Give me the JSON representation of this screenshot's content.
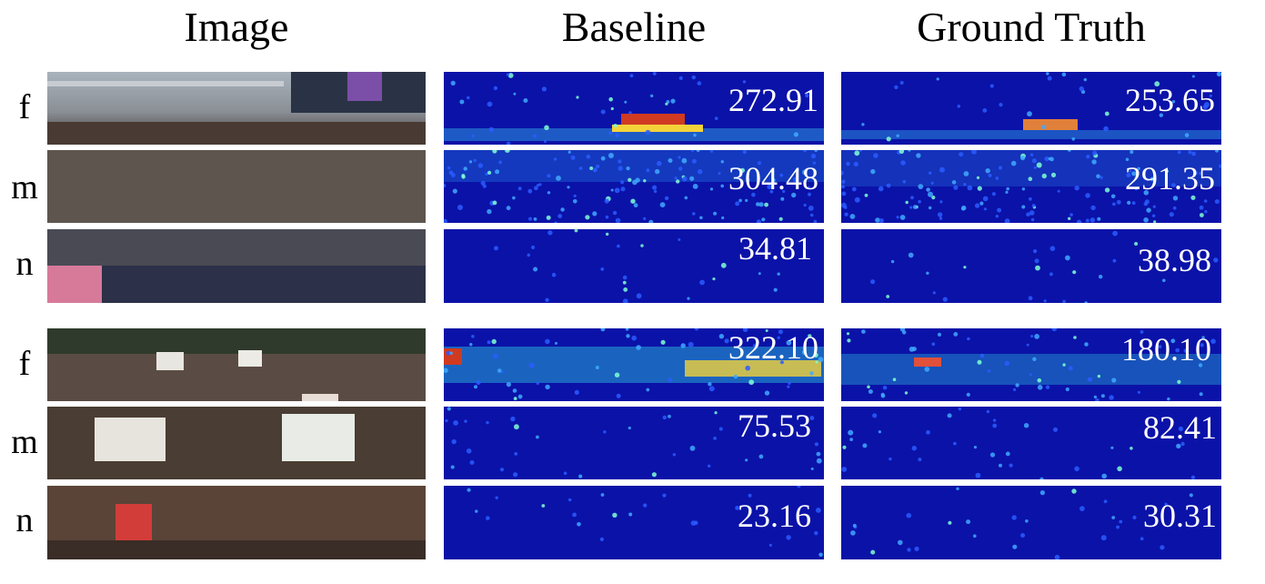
{
  "columns": {
    "image": "Image",
    "baseline": "Baseline",
    "ground_truth": "Ground Truth"
  },
  "row_labels": [
    "f",
    "m",
    "n",
    "f",
    "m",
    "n"
  ],
  "baseline_counts": [
    "272.91",
    "304.48",
    "34.81",
    "322.10",
    "75.53",
    "23.16"
  ],
  "ground_truth_counts": [
    "253.65",
    "291.35",
    "38.98",
    "180.10",
    "82.41",
    "30.31"
  ],
  "colors": {
    "density_background": "#0b12a8",
    "photo_dark": "#3a2e2a",
    "photo_light": "#c9b8a8"
  }
}
